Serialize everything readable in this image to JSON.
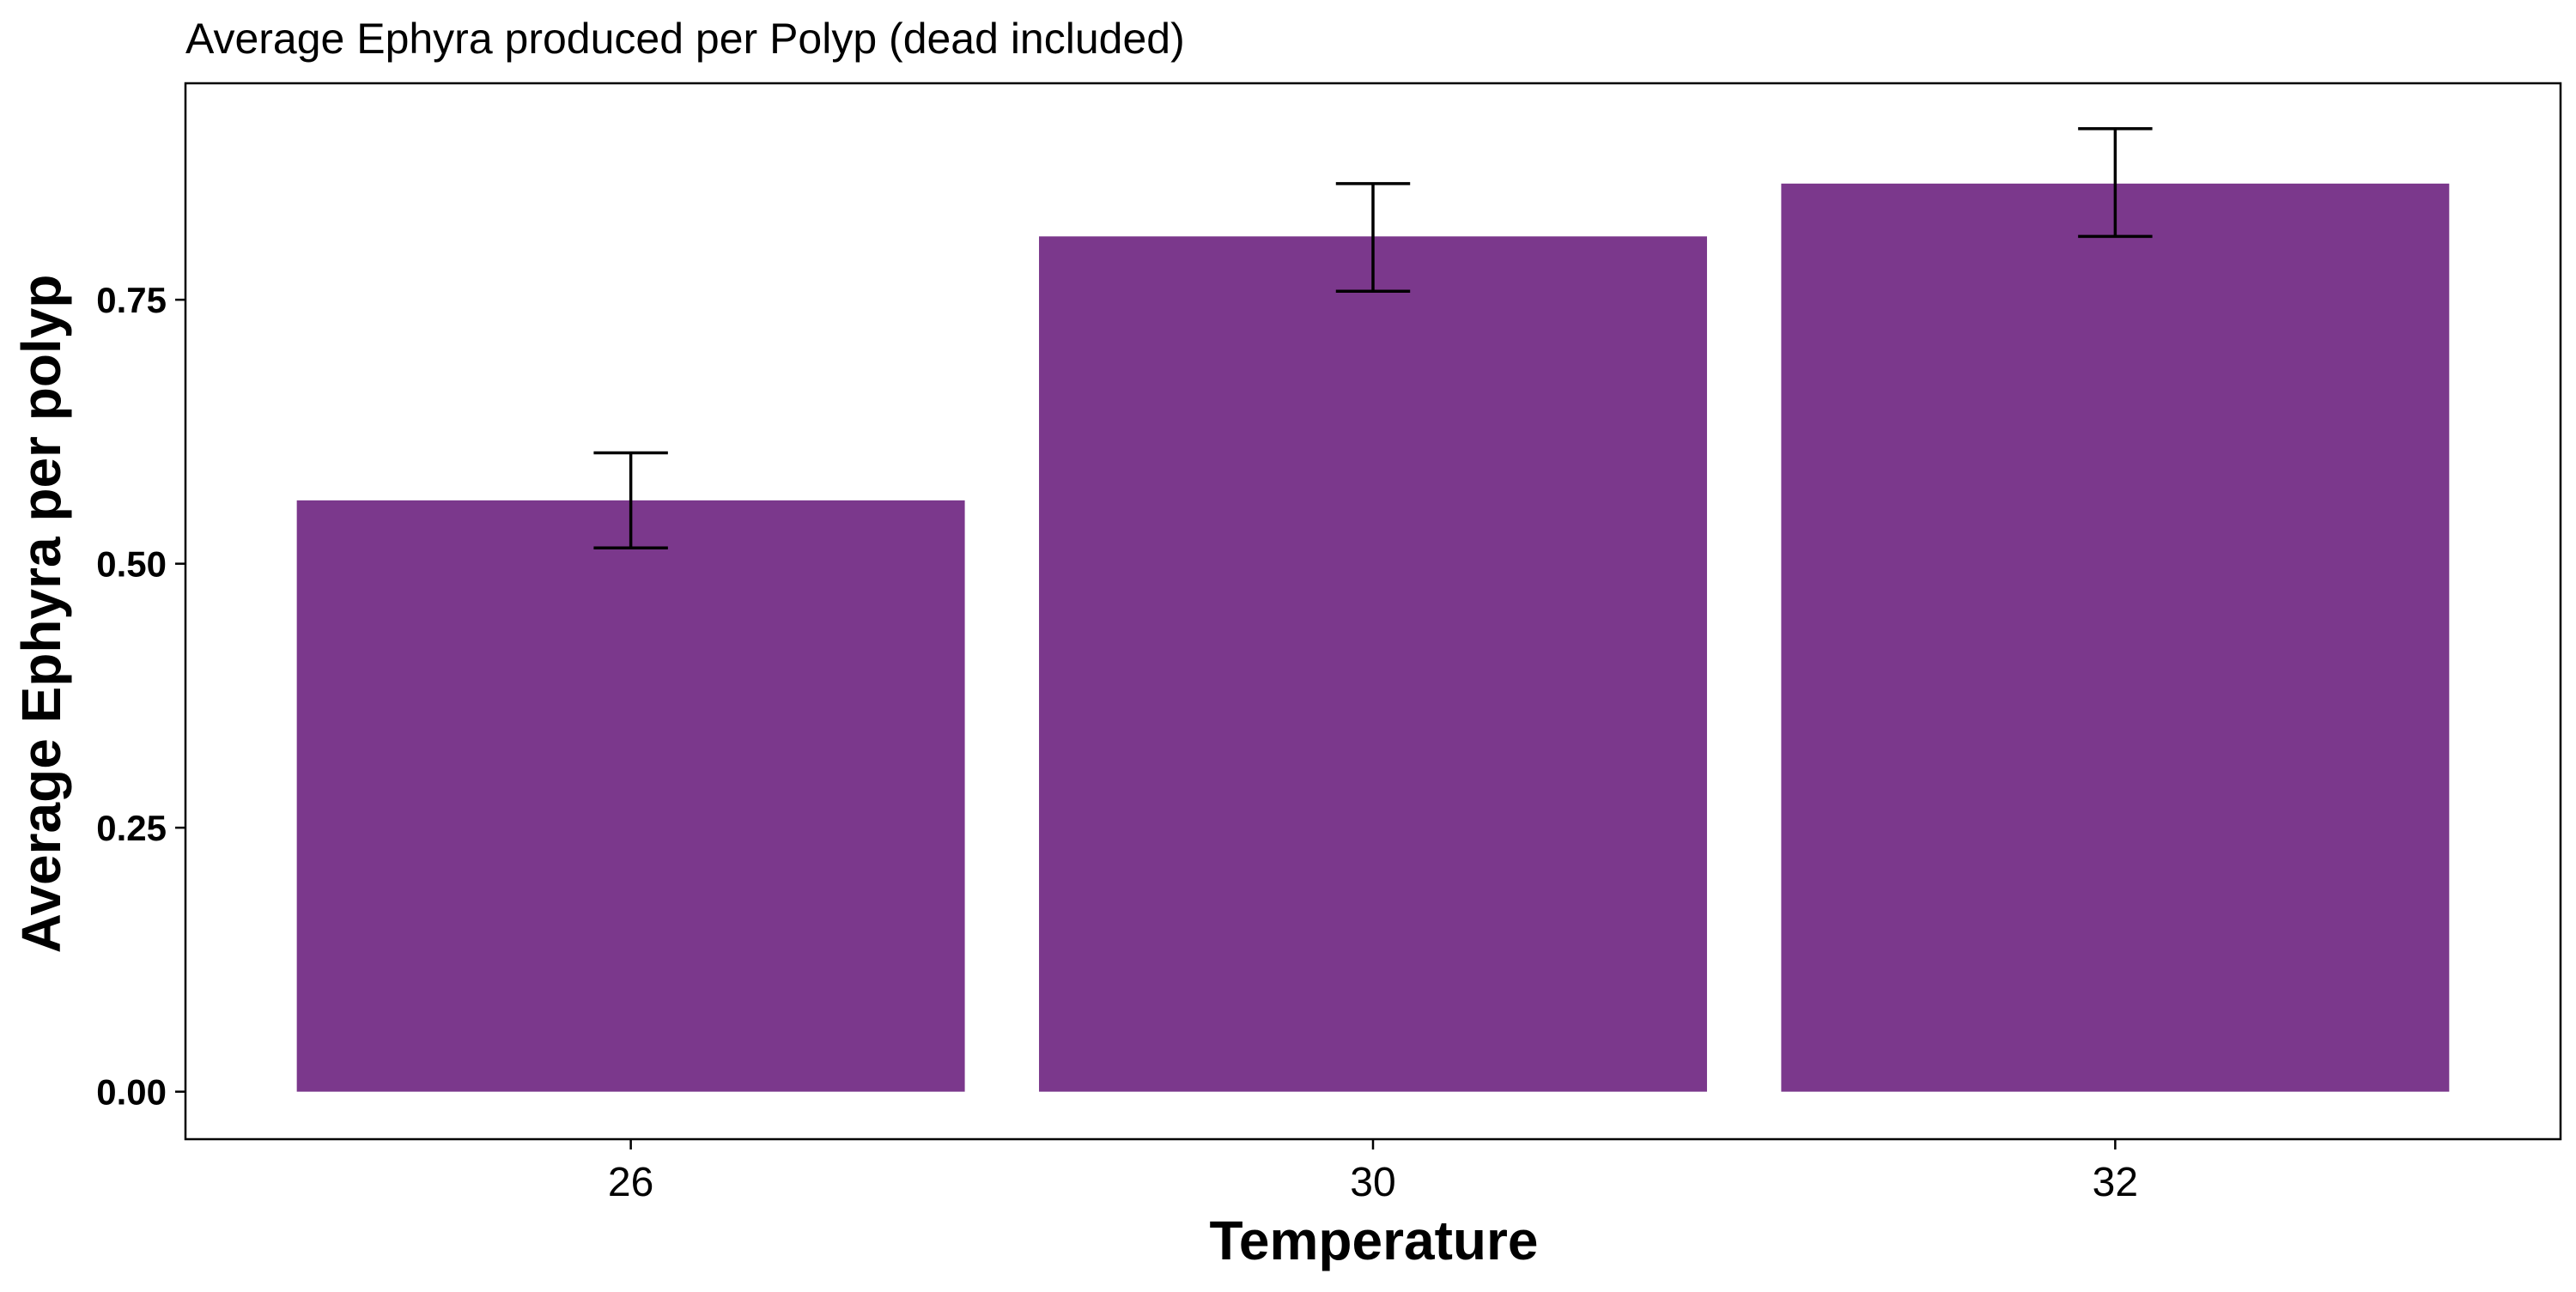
{
  "colors": {
    "bar": "#7b388c",
    "error_bar": "#000000",
    "panel_border": "#000000",
    "background": "#ffffff"
  },
  "chart_data": {
    "type": "bar",
    "title": "Average Ephyra produced per Polyp (dead included)",
    "xlabel": "Temperature",
    "ylabel": "Average Ephyra per polyp",
    "categories": [
      "26",
      "30",
      "32"
    ],
    "values": [
      0.56,
      0.81,
      0.86
    ],
    "error_low": [
      0.515,
      0.758,
      0.81
    ],
    "error_high": [
      0.605,
      0.86,
      0.912
    ],
    "ylim": [
      -0.045,
      0.955
    ],
    "yticks": [
      0.0,
      0.25,
      0.5,
      0.75
    ],
    "ytick_labels": [
      "0.00",
      "0.25",
      "0.50",
      "0.75"
    ],
    "grid": false,
    "legend": "none"
  }
}
